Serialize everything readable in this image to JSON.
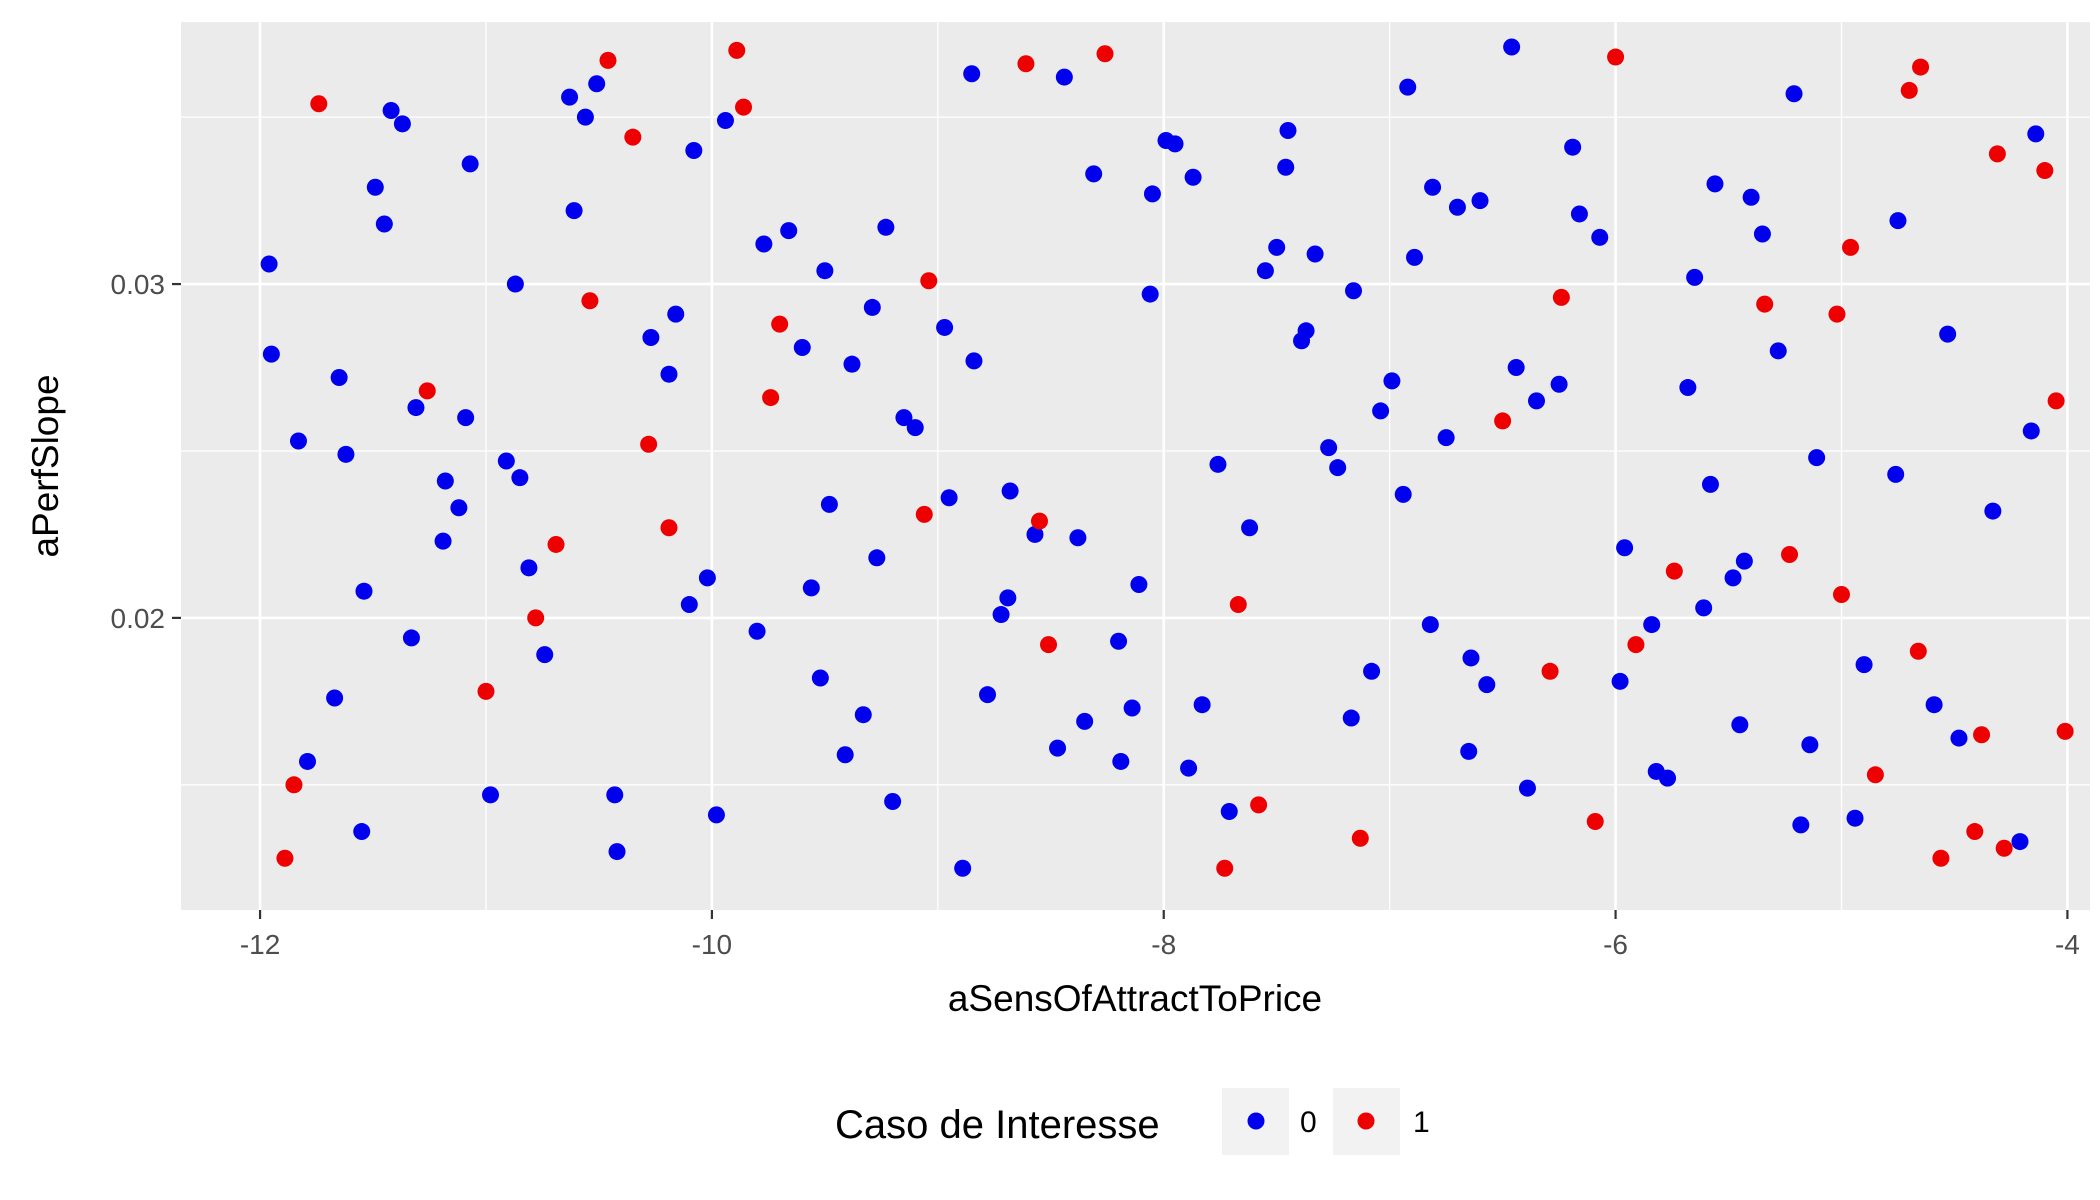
{
  "chart_data": {
    "type": "scatter",
    "xlabel": "aSensOfAttractToPrice",
    "ylabel": "aPerfSlope",
    "xlim": [
      -12.35,
      -3.9
    ],
    "ylim": [
      0.01125,
      0.03785
    ],
    "x_ticks": [
      -12,
      -10,
      -8,
      -6,
      -4
    ],
    "x_tick_labels": [
      "-12",
      "-10",
      "-8",
      "-6",
      "-4"
    ],
    "y_ticks": [
      0.02,
      0.03
    ],
    "y_tick_labels": [
      "0.02",
      "0.03"
    ],
    "grid": true,
    "legend": {
      "title": "Caso de Interesse",
      "position": "bottom",
      "entries": [
        {
          "label": "0",
          "color": "#0000ee"
        },
        {
          "label": "1",
          "color": "#ee0000"
        }
      ]
    },
    "series": [
      {
        "name": "0",
        "color": "#0000ee",
        "points": [
          [
            -11.96,
            0.0306
          ],
          [
            -11.95,
            0.0279
          ],
          [
            -11.83,
            0.0253
          ],
          [
            -11.79,
            0.0157
          ],
          [
            -11.67,
            0.0176
          ],
          [
            -11.65,
            0.0272
          ],
          [
            -11.62,
            0.0249
          ],
          [
            -11.55,
            0.0136
          ],
          [
            -11.54,
            0.0208
          ],
          [
            -11.49,
            0.0329
          ],
          [
            -11.45,
            0.0318
          ],
          [
            -11.42,
            0.0352
          ],
          [
            -11.37,
            0.0348
          ],
          [
            -11.33,
            0.0194
          ],
          [
            -11.31,
            0.0263
          ],
          [
            -11.19,
            0.0223
          ],
          [
            -11.18,
            0.0241
          ],
          [
            -11.12,
            0.0233
          ],
          [
            -11.09,
            0.026
          ],
          [
            -11.07,
            0.0336
          ],
          [
            -10.98,
            0.0147
          ],
          [
            -10.91,
            0.0247
          ],
          [
            -10.87,
            0.03
          ],
          [
            -10.85,
            0.0242
          ],
          [
            -10.81,
            0.0215
          ],
          [
            -10.74,
            0.0189
          ],
          [
            -10.63,
            0.0356
          ],
          [
            -10.61,
            0.0322
          ],
          [
            -10.56,
            0.035
          ],
          [
            -10.51,
            0.036
          ],
          [
            -10.43,
            0.0147
          ],
          [
            -10.42,
            0.013
          ],
          [
            -10.27,
            0.0284
          ],
          [
            -10.19,
            0.0273
          ],
          [
            -10.16,
            0.0291
          ],
          [
            -10.1,
            0.0204
          ],
          [
            -10.08,
            0.034
          ],
          [
            -10.02,
            0.0212
          ],
          [
            -9.98,
            0.0141
          ],
          [
            -9.94,
            0.0349
          ],
          [
            -9.8,
            0.0196
          ],
          [
            -9.77,
            0.0312
          ],
          [
            -9.66,
            0.0316
          ],
          [
            -9.6,
            0.0281
          ],
          [
            -9.56,
            0.0209
          ],
          [
            -9.52,
            0.0182
          ],
          [
            -9.5,
            0.0304
          ],
          [
            -9.48,
            0.0234
          ],
          [
            -9.41,
            0.0159
          ],
          [
            -9.38,
            0.0276
          ],
          [
            -9.33,
            0.0171
          ],
          [
            -9.29,
            0.0293
          ],
          [
            -9.27,
            0.0218
          ],
          [
            -9.23,
            0.0317
          ],
          [
            -9.2,
            0.0145
          ],
          [
            -9.15,
            0.026
          ],
          [
            -9.1,
            0.0257
          ],
          [
            -8.97,
            0.0287
          ],
          [
            -8.95,
            0.0236
          ],
          [
            -8.89,
            0.0125
          ],
          [
            -8.85,
            0.0363
          ],
          [
            -8.84,
            0.0277
          ],
          [
            -8.78,
            0.0177
          ],
          [
            -8.72,
            0.0201
          ],
          [
            -8.69,
            0.0206
          ],
          [
            -8.68,
            0.0238
          ],
          [
            -8.57,
            0.0225
          ],
          [
            -8.47,
            0.0161
          ],
          [
            -8.44,
            0.0362
          ],
          [
            -8.38,
            0.0224
          ],
          [
            -8.35,
            0.0169
          ],
          [
            -8.31,
            0.0333
          ],
          [
            -8.2,
            0.0193
          ],
          [
            -8.19,
            0.0157
          ],
          [
            -8.14,
            0.0173
          ],
          [
            -8.11,
            0.021
          ],
          [
            -8.06,
            0.0297
          ],
          [
            -8.05,
            0.0327
          ],
          [
            -7.99,
            0.0343
          ],
          [
            -7.95,
            0.0342
          ],
          [
            -7.89,
            0.0155
          ],
          [
            -7.87,
            0.0332
          ],
          [
            -7.83,
            0.0174
          ],
          [
            -7.76,
            0.0246
          ],
          [
            -7.71,
            0.0142
          ],
          [
            -7.62,
            0.0227
          ],
          [
            -7.55,
            0.0304
          ],
          [
            -7.5,
            0.0311
          ],
          [
            -7.46,
            0.0335
          ],
          [
            -7.45,
            0.0346
          ],
          [
            -7.39,
            0.0283
          ],
          [
            -7.37,
            0.0286
          ],
          [
            -7.33,
            0.0309
          ],
          [
            -7.27,
            0.0251
          ],
          [
            -7.23,
            0.0245
          ],
          [
            -7.17,
            0.017
          ],
          [
            -7.16,
            0.0298
          ],
          [
            -7.08,
            0.0184
          ],
          [
            -7.04,
            0.0262
          ],
          [
            -6.99,
            0.0271
          ],
          [
            -6.94,
            0.0237
          ],
          [
            -6.92,
            0.0359
          ],
          [
            -6.89,
            0.0308
          ],
          [
            -6.82,
            0.0198
          ],
          [
            -6.81,
            0.0329
          ],
          [
            -6.75,
            0.0254
          ],
          [
            -6.7,
            0.0323
          ],
          [
            -6.65,
            0.016
          ],
          [
            -6.64,
            0.0188
          ],
          [
            -6.6,
            0.0325
          ],
          [
            -6.57,
            0.018
          ],
          [
            -6.46,
            0.0371
          ],
          [
            -6.44,
            0.0275
          ],
          [
            -6.39,
            0.0149
          ],
          [
            -6.35,
            0.0265
          ],
          [
            -6.25,
            0.027
          ],
          [
            -6.19,
            0.0341
          ],
          [
            -6.16,
            0.0321
          ],
          [
            -6.07,
            0.0314
          ],
          [
            -5.98,
            0.0181
          ],
          [
            -5.96,
            0.0221
          ],
          [
            -5.84,
            0.0198
          ],
          [
            -5.82,
            0.0154
          ],
          [
            -5.77,
            0.0152
          ],
          [
            -5.68,
            0.0269
          ],
          [
            -5.65,
            0.0302
          ],
          [
            -5.61,
            0.0203
          ],
          [
            -5.58,
            0.024
          ],
          [
            -5.56,
            0.033
          ],
          [
            -5.48,
            0.0212
          ],
          [
            -5.45,
            0.0168
          ],
          [
            -5.43,
            0.0217
          ],
          [
            -5.4,
            0.0326
          ],
          [
            -5.35,
            0.0315
          ],
          [
            -5.28,
            0.028
          ],
          [
            -5.21,
            0.0357
          ],
          [
            -5.18,
            0.0138
          ],
          [
            -5.14,
            0.0162
          ],
          [
            -5.11,
            0.0248
          ],
          [
            -4.94,
            0.014
          ],
          [
            -4.9,
            0.0186
          ],
          [
            -4.76,
            0.0243
          ],
          [
            -4.75,
            0.0319
          ],
          [
            -4.59,
            0.0174
          ],
          [
            -4.53,
            0.0285
          ],
          [
            -4.48,
            0.0164
          ],
          [
            -4.33,
            0.0232
          ],
          [
            -4.21,
            0.0133
          ],
          [
            -4.16,
            0.0256
          ],
          [
            -4.14,
            0.0345
          ]
        ]
      },
      {
        "name": "1",
        "color": "#ee0000",
        "points": [
          [
            -11.89,
            0.0128
          ],
          [
            -11.85,
            0.015
          ],
          [
            -11.74,
            0.0354
          ],
          [
            -11.26,
            0.0268
          ],
          [
            -11.0,
            0.0178
          ],
          [
            -10.78,
            0.02
          ],
          [
            -10.69,
            0.0222
          ],
          [
            -10.54,
            0.0295
          ],
          [
            -10.46,
            0.0367
          ],
          [
            -10.35,
            0.0344
          ],
          [
            -10.28,
            0.0252
          ],
          [
            -10.19,
            0.0227
          ],
          [
            -9.89,
            0.037
          ],
          [
            -9.86,
            0.0353
          ],
          [
            -9.74,
            0.0266
          ],
          [
            -9.7,
            0.0288
          ],
          [
            -9.06,
            0.0231
          ],
          [
            -9.04,
            0.0301
          ],
          [
            -8.61,
            0.0366
          ],
          [
            -8.55,
            0.0229
          ],
          [
            -8.51,
            0.0192
          ],
          [
            -8.26,
            0.0369
          ],
          [
            -7.73,
            0.0125
          ],
          [
            -7.67,
            0.0204
          ],
          [
            -7.58,
            0.0144
          ],
          [
            -7.13,
            0.0134
          ],
          [
            -6.5,
            0.0259
          ],
          [
            -6.29,
            0.0184
          ],
          [
            -6.24,
            0.0296
          ],
          [
            -6.09,
            0.0139
          ],
          [
            -6.0,
            0.0368
          ],
          [
            -5.91,
            0.0192
          ],
          [
            -5.74,
            0.0214
          ],
          [
            -5.34,
            0.0294
          ],
          [
            -5.23,
            0.0219
          ],
          [
            -5.02,
            0.0291
          ],
          [
            -5.0,
            0.0207
          ],
          [
            -4.96,
            0.0311
          ],
          [
            -4.85,
            0.0153
          ],
          [
            -4.66,
            0.019
          ],
          [
            -4.7,
            0.0358
          ],
          [
            -4.65,
            0.0365
          ],
          [
            -4.56,
            0.0128
          ],
          [
            -4.41,
            0.0136
          ],
          [
            -4.38,
            0.0165
          ],
          [
            -4.31,
            0.0339
          ],
          [
            -4.28,
            0.0131
          ],
          [
            -4.1,
            0.0334
          ],
          [
            -4.05,
            0.0265
          ],
          [
            -4.01,
            0.0166
          ]
        ]
      }
    ]
  }
}
